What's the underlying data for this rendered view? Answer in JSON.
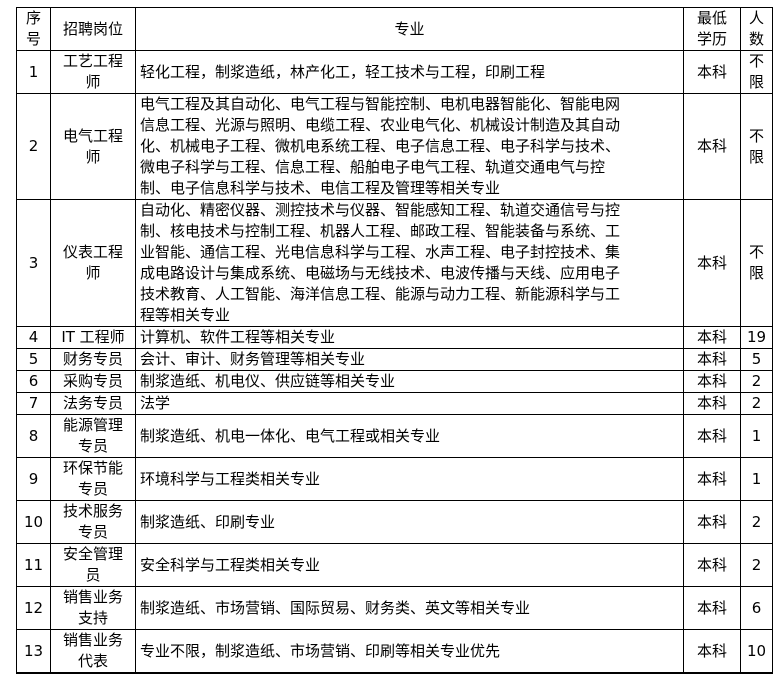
{
  "header": {
    "no": [
      "序",
      "号"
    ],
    "position": "招聘岗位",
    "major": "专业",
    "edu": [
      "最低",
      "学历"
    ],
    "count": [
      "人",
      "数"
    ]
  },
  "rows": [
    {
      "no": "1",
      "position": [
        "工艺工程",
        "师"
      ],
      "major": [
        "轻化工程，制浆造纸，林产化工，轻工技术与工程，印刷工程"
      ],
      "edu": "本科",
      "count": [
        "不",
        "限"
      ]
    },
    {
      "no": "2",
      "position": [
        "电气工程",
        "师"
      ],
      "major": [
        "电气工程及其自动化、电气工程与智能控制、电机电器智能化、智能电网",
        "信息工程、光源与照明、电缆工程、农业电气化、机械设计制造及其自动",
        "化、机械电子工程、微机电系统工程、电子信息工程、电子科学与技术、",
        "微电子科学与工程、信息工程、船舶电子电气工程、轨道交通电气与控",
        "制、电子信息科学与技术、电信工程及管理等相关专业"
      ],
      "edu": "本科",
      "count": [
        "不",
        "限"
      ]
    },
    {
      "no": "3",
      "position": [
        "仪表工程",
        "师"
      ],
      "major": [
        "自动化、精密仪器、测控技术与仪器、智能感知工程、轨道交通信号与控",
        "制、核电技术与控制工程、机器人工程、邮政工程、智能装备与系统、工",
        "业智能、通信工程、光电信息科学与工程、水声工程、电子封控技术、集",
        "成电路设计与集成系统、电磁场与无线技术、电波传播与天线、应用电子",
        "技术教育、人工智能、海洋信息工程、能源与动力工程、新能源科学与工",
        "程等相关专业"
      ],
      "edu": "本科",
      "count": [
        "不",
        "限"
      ]
    },
    {
      "no": "4",
      "position": [
        "IT 工程师"
      ],
      "major": [
        "计算机、软件工程等相关专业"
      ],
      "edu": "本科",
      "count": [
        "19"
      ]
    },
    {
      "no": "5",
      "position": [
        "财务专员"
      ],
      "major": [
        "会计、审计、财务管理等相关专业"
      ],
      "edu": "本科",
      "count": [
        "5"
      ]
    },
    {
      "no": "6",
      "position": [
        "采购专员"
      ],
      "major": [
        "制浆造纸、机电仪、供应链等相关专业"
      ],
      "edu": "本科",
      "count": [
        "2"
      ]
    },
    {
      "no": "7",
      "position": [
        "法务专员"
      ],
      "major": [
        "法学"
      ],
      "edu": "本科",
      "count": [
        "2"
      ]
    },
    {
      "no": "8",
      "position": [
        "能源管理",
        "专员"
      ],
      "major": [
        "制浆造纸、机电一体化、电气工程或相关专业"
      ],
      "edu": "本科",
      "count": [
        "1"
      ]
    },
    {
      "no": "9",
      "position": [
        "环保节能",
        "专员"
      ],
      "major": [
        "环境科学与工程类相关专业"
      ],
      "edu": "本科",
      "count": [
        "1"
      ]
    },
    {
      "no": "10",
      "position": [
        "技术服务",
        "专员"
      ],
      "major": [
        "制浆造纸、印刷专业"
      ],
      "edu": "本科",
      "count": [
        "2"
      ]
    },
    {
      "no": "11",
      "position": [
        "安全管理",
        "员"
      ],
      "major": [
        "安全科学与工程类相关专业"
      ],
      "edu": "本科",
      "count": [
        "2"
      ]
    },
    {
      "no": "12",
      "position": [
        "销售业务",
        "支持"
      ],
      "major": [
        "制浆造纸、市场营销、国际贸易、财务类、英文等相关专业"
      ],
      "edu": "本科",
      "count": [
        "6"
      ]
    },
    {
      "no": "13",
      "position": [
        "销售业务",
        "代表"
      ],
      "major": [
        "专业不限，制浆造纸、市场营销、印刷等相关专业优先"
      ],
      "edu": "本科",
      "count": [
        "10"
      ]
    }
  ]
}
